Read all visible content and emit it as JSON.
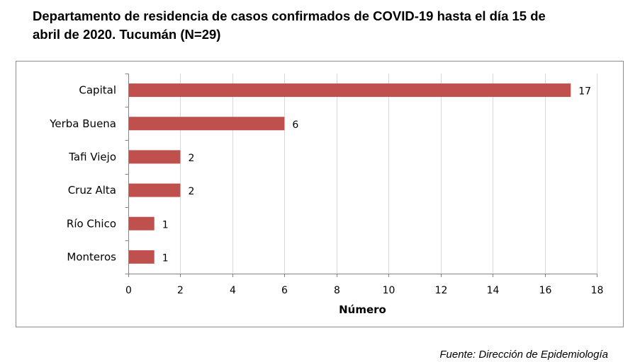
{
  "title_line1": "Departamento de residencia de casos confirmados de COVID-19 hasta el día 15 de",
  "title_line2": "abril de 2020. Tucumán (N=29)",
  "source": "Fuente: Dirección de Epidemiología",
  "chart_data": {
    "type": "bar",
    "orientation": "horizontal",
    "categories": [
      "Capital",
      "Yerba Buena",
      "Tafi Viejo",
      "Cruz Alta",
      "Río Chico",
      "Monteros"
    ],
    "values": [
      17,
      6,
      2,
      2,
      1,
      1
    ],
    "xlabel": "Número",
    "ylabel": "",
    "xlim": [
      0,
      18
    ],
    "xticks": [
      0,
      2,
      4,
      6,
      8,
      10,
      12,
      14,
      16,
      18
    ],
    "grid": "vertical",
    "bar_color": "#c0504d",
    "data_labels": true,
    "legend": "none"
  }
}
